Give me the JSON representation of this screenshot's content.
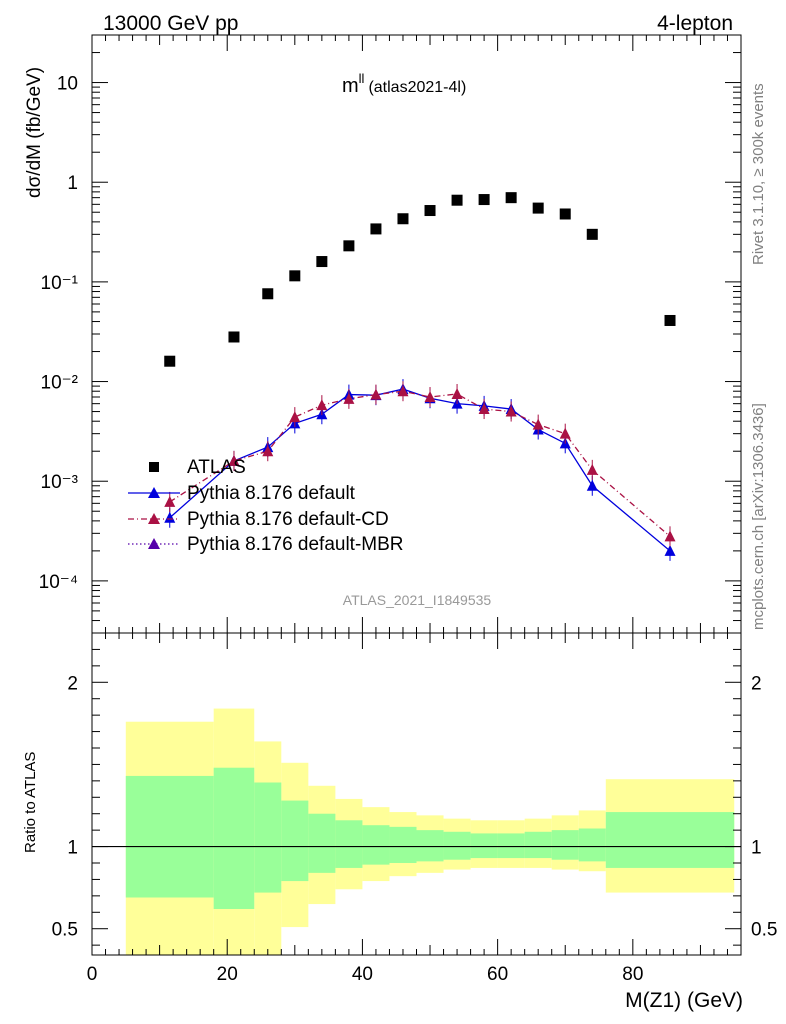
{
  "header": {
    "energy": "13000 GeV pp",
    "channel": "4-lepton"
  },
  "side_text": {
    "rivet": "Rivet 3.1.10, ≥ 300k events",
    "mcplots": "mcplots.cern.ch [arXiv:1306.3436]"
  },
  "chart_data": [
    {
      "type": "scatter",
      "title_main": "m",
      "title_sup": "ll",
      "title_sub": "(atlas2021-4l)",
      "watermark": "ATLAS_2021_I1849535",
      "ylabel": "dσ/dM (fb/GeV)",
      "yscale": "log",
      "xlim": [
        0,
        96
      ],
      "ylim": [
        3e-05,
        30
      ],
      "y_tick_labels": [
        "10",
        "1",
        "10⁻¹",
        "10⁻²",
        "10⁻³",
        "10⁻⁴"
      ],
      "legend_position": "bottom-left",
      "series": [
        {
          "name": "ATLAS",
          "color": "#000000",
          "marker": "square",
          "x": [
            11.5,
            21,
            26,
            30,
            34,
            38,
            42,
            46,
            50,
            54,
            58,
            62,
            66,
            70,
            74,
            85.5
          ],
          "y": [
            0.016,
            0.028,
            0.076,
            0.115,
            0.16,
            0.23,
            0.34,
            0.43,
            0.52,
            0.66,
            0.67,
            0.7,
            0.55,
            0.48,
            0.3,
            0.041
          ]
        },
        {
          "name": "Pythia 8.176 default",
          "color": "#0000dd",
          "marker": "triangle",
          "line": "solid",
          "x": [
            11.5,
            21,
            26,
            30,
            34,
            38,
            42,
            46,
            50,
            54,
            58,
            62,
            66,
            70,
            74,
            85.5
          ],
          "y": [
            0.00043,
            0.0016,
            0.0022,
            0.0038,
            0.0047,
            0.0074,
            0.0073,
            0.0084,
            0.0068,
            0.006,
            0.0057,
            0.0053,
            0.0033,
            0.0024,
            0.0009,
            0.0002
          ]
        },
        {
          "name": "Pythia 8.176 default-CD",
          "color": "#aa1144",
          "marker": "triangle",
          "line": "dash-dot",
          "x": [
            11.5,
            21,
            26,
            30,
            34,
            38,
            42,
            46,
            50,
            54,
            58,
            62,
            66,
            70,
            74,
            85.5
          ],
          "y": [
            0.00062,
            0.0016,
            0.002,
            0.0044,
            0.0058,
            0.0067,
            0.0074,
            0.008,
            0.007,
            0.0075,
            0.0053,
            0.005,
            0.0037,
            0.003,
            0.0013,
            0.00028
          ]
        },
        {
          "name": "Pythia 8.176 default-MBR",
          "color": "#5500aa",
          "marker": "triangle",
          "line": "dotted",
          "x": [],
          "y": []
        }
      ]
    },
    {
      "type": "area",
      "ylabel": "Ratio to ATLAS",
      "xlabel": "M(Z1) (GeV)",
      "xlim": [
        0,
        96
      ],
      "ylim": [
        0.34,
        2.3
      ],
      "x_tick_labels": [
        "0",
        "20",
        "40",
        "60",
        "80"
      ],
      "y_tick_labels": [
        "2",
        "1",
        "0.5"
      ],
      "reference_line": 1,
      "bin_edges": [
        5,
        18,
        24,
        28,
        32,
        36,
        40,
        44,
        48,
        52,
        56,
        60,
        64,
        68,
        72,
        76,
        95
      ],
      "bands": [
        {
          "color": "#ffff99",
          "lower": [
            0.34,
            0.34,
            0.34,
            0.51,
            0.65,
            0.74,
            0.79,
            0.82,
            0.84,
            0.86,
            0.87,
            0.87,
            0.87,
            0.86,
            0.85,
            0.72
          ],
          "upper": [
            1.76,
            1.84,
            1.64,
            1.51,
            1.37,
            1.29,
            1.24,
            1.21,
            1.19,
            1.17,
            1.16,
            1.16,
            1.17,
            1.19,
            1.22,
            1.41
          ]
        },
        {
          "color": "#99ff99",
          "lower": [
            0.69,
            0.62,
            0.72,
            0.79,
            0.84,
            0.87,
            0.89,
            0.9,
            0.91,
            0.92,
            0.93,
            0.93,
            0.93,
            0.92,
            0.91,
            0.87
          ],
          "upper": [
            1.43,
            1.48,
            1.39,
            1.28,
            1.2,
            1.16,
            1.13,
            1.12,
            1.1,
            1.09,
            1.08,
            1.08,
            1.09,
            1.1,
            1.11,
            1.21
          ]
        }
      ]
    }
  ]
}
